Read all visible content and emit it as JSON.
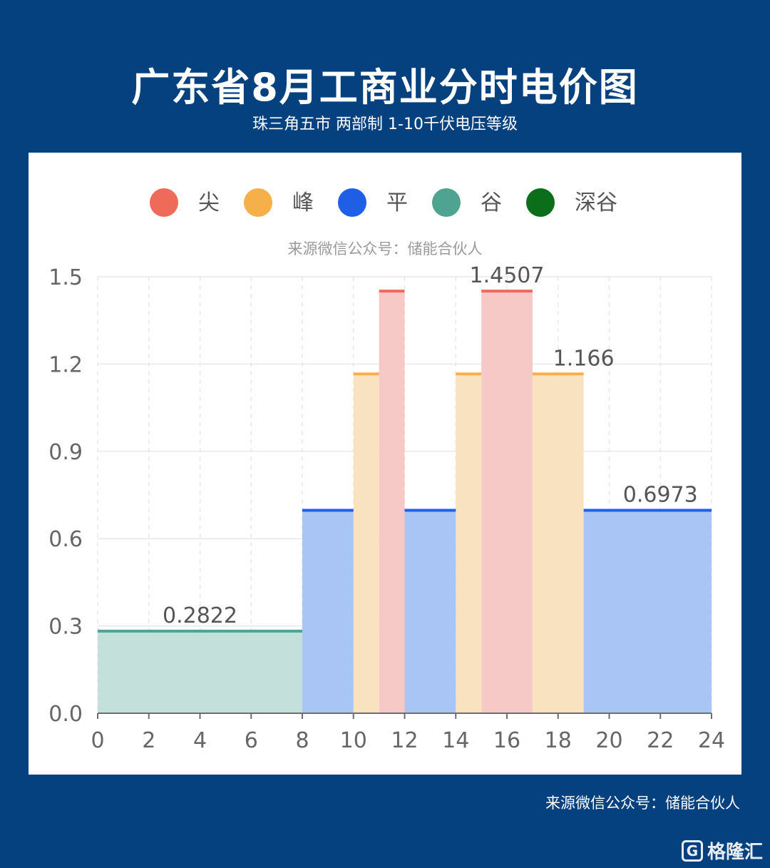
{
  "header": {
    "title": "广东省8月工商业分时电价图",
    "subtitle": "珠三角五市 两部制 1-10千伏电压等级"
  },
  "footer": {
    "source": "来源微信公众号：储能合伙人",
    "watermark_logo": "G",
    "watermark_text": "格隆汇"
  },
  "chart_data": {
    "type": "area",
    "title": "",
    "subtitle": "来源微信公众号：储能合伙人",
    "xlabel": "",
    "ylabel": "",
    "xlim": [
      0,
      24
    ],
    "ylim": [
      0,
      1.5
    ],
    "x_ticks": [
      0,
      2,
      4,
      6,
      8,
      10,
      12,
      14,
      16,
      18,
      20,
      22,
      24
    ],
    "y_ticks": [
      "0.0",
      "0.3",
      "0.6",
      "0.9",
      "1.2",
      "1.5"
    ],
    "grid": true,
    "legend_position": "top-center",
    "series": [
      {
        "name": "尖",
        "color": "#ee6b5a",
        "fill": "#f6c9c6",
        "segments": [
          {
            "x0": 11,
            "x1": 12,
            "y": 1.4507
          },
          {
            "x0": 15,
            "x1": 17,
            "y": 1.4507
          }
        ]
      },
      {
        "name": "峰",
        "color": "#f5b04a",
        "fill": "#f9e2c0",
        "segments": [
          {
            "x0": 10,
            "x1": 11,
            "y": 1.166
          },
          {
            "x0": 14,
            "x1": 15,
            "y": 1.166
          },
          {
            "x0": 17,
            "x1": 19,
            "y": 1.166
          }
        ]
      },
      {
        "name": "平",
        "color": "#1f5fe6",
        "fill": "#a9c5f6",
        "segments": [
          {
            "x0": 8,
            "x1": 10,
            "y": 0.6973
          },
          {
            "x0": 12,
            "x1": 14,
            "y": 0.6973
          },
          {
            "x0": 19,
            "x1": 24,
            "y": 0.6973
          }
        ]
      },
      {
        "name": "谷",
        "color": "#4fa391",
        "fill": "#c4e0da",
        "segments": [
          {
            "x0": 0,
            "x1": 8,
            "y": 0.2822
          }
        ]
      },
      {
        "name": "深谷",
        "color": "#0b6e1a",
        "fill": "#0b6e1a",
        "segments": []
      }
    ],
    "data_labels": [
      {
        "text": "0.2822",
        "x": 4,
        "y": 0.2822
      },
      {
        "text": "1.4507",
        "x": 16,
        "y": 1.4507
      },
      {
        "text": "1.166",
        "x": 19,
        "y": 1.166
      },
      {
        "text": "0.6973",
        "x": 22,
        "y": 0.6973
      }
    ]
  }
}
